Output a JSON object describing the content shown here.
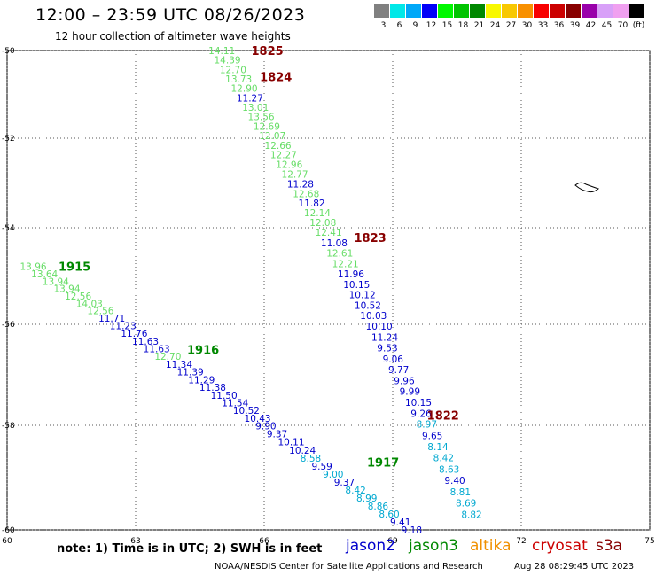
{
  "title": "12:00 – 23:59 UTC 08/26/2023",
  "subtitle": "12 hour collection of altimeter wave heights",
  "scale": {
    "colors": [
      "#808080",
      "#00e8e8",
      "#00a8f8",
      "#0000f8",
      "#00f800",
      "#00c400",
      "#008800",
      "#f8f800",
      "#f8c800",
      "#f89000",
      "#f80000",
      "#cc0000",
      "#880000",
      "#9900aa",
      "#d8a0f8",
      "#f0a0f0",
      "#000000"
    ],
    "labels": [
      "3",
      "6",
      "9",
      "12",
      "15",
      "18",
      "21",
      "24",
      "27",
      "30",
      "33",
      "36",
      "39",
      "42",
      "45",
      "70",
      "(ft)"
    ]
  },
  "axes": {
    "lat_labels": [
      "-50",
      "-52",
      "-54",
      "-56",
      "-58",
      "-60"
    ],
    "lat_values": [
      -50,
      -52,
      -54,
      -56,
      -58,
      -60
    ],
    "lon_labels": [
      "60",
      "63",
      "66",
      "69",
      "72",
      "75"
    ],
    "lon_values": [
      60,
      63,
      66,
      69,
      72,
      75
    ]
  },
  "colors": {
    "jason2": "#0000cc",
    "jason3": "#008800",
    "altika": "#f09000",
    "cryosat": "#cc0000",
    "s3a": "#880000",
    "light_green": "#66dd66",
    "cyan": "#00a8d0"
  },
  "legend": {
    "note": "note:  1) Time is in UTC;  2) SWH is in feet",
    "jason2": "jason2",
    "jason3": "jason3",
    "altika": "altika",
    "cryosat": "cryosat",
    "s3a": "s3a"
  },
  "credit": "NOAA/NESDIS Center for Satellite Applications and Research",
  "timestamp": "Aug 28 08:29:45 UTC 2023",
  "track_labels": [
    {
      "text": "1825",
      "lat": -50.0,
      "lon": 65.7,
      "color": "#880000"
    },
    {
      "text": "1824",
      "lat": -50.6,
      "lon": 65.9,
      "color": "#880000"
    },
    {
      "text": "1823",
      "lat": -54.2,
      "lon": 68.1,
      "color": "#880000"
    },
    {
      "text": "1822",
      "lat": -57.8,
      "lon": 69.8,
      "color": "#880000"
    },
    {
      "text": "1915",
      "lat": -54.8,
      "lon": 61.2,
      "color": "#008800"
    },
    {
      "text": "1916",
      "lat": -56.5,
      "lon": 64.2,
      "color": "#008800"
    },
    {
      "text": "1917",
      "lat": -58.7,
      "lon": 68.4,
      "color": "#008800"
    }
  ],
  "tracks": [
    {
      "name": "s3a-1825",
      "lat_start": -50.0,
      "lat_end": -59.7,
      "lon_start": 64.7,
      "lon_end": 70.6,
      "values": [
        {
          "v": "14.11",
          "c": "#66dd66"
        },
        {
          "v": "14.39",
          "c": "#66dd66"
        },
        {
          "v": "12.70",
          "c": "#66dd66"
        },
        {
          "v": "13.73",
          "c": "#66dd66"
        },
        {
          "v": "12.90",
          "c": "#66dd66"
        },
        {
          "v": "11.27",
          "c": "#0000cc"
        },
        {
          "v": "13.01",
          "c": "#66dd66"
        },
        {
          "v": "13.56",
          "c": "#66dd66"
        },
        {
          "v": "12.69",
          "c": "#66dd66"
        },
        {
          "v": "12.07",
          "c": "#66dd66"
        },
        {
          "v": "12.66",
          "c": "#66dd66"
        },
        {
          "v": "12.27",
          "c": "#66dd66"
        },
        {
          "v": "12.96",
          "c": "#66dd66"
        },
        {
          "v": "12.77",
          "c": "#66dd66"
        },
        {
          "v": "11.28",
          "c": "#0000cc"
        },
        {
          "v": "12.68",
          "c": "#66dd66"
        },
        {
          "v": "11.82",
          "c": "#0000cc"
        },
        {
          "v": "12.14",
          "c": "#66dd66"
        },
        {
          "v": "12.08",
          "c": "#66dd66"
        },
        {
          "v": "12.41",
          "c": "#66dd66"
        },
        {
          "v": "11.08",
          "c": "#0000cc"
        },
        {
          "v": "12.61",
          "c": "#66dd66"
        },
        {
          "v": "12.21",
          "c": "#66dd66"
        },
        {
          "v": "11.96",
          "c": "#0000cc"
        },
        {
          "v": "10.15",
          "c": "#0000cc"
        },
        {
          "v": "10.12",
          "c": "#0000cc"
        },
        {
          "v": "10.52",
          "c": "#0000cc"
        },
        {
          "v": "10.03",
          "c": "#0000cc"
        },
        {
          "v": "10.10",
          "c": "#0000cc"
        },
        {
          "v": "11.24",
          "c": "#0000cc"
        },
        {
          "v": "9.53",
          "c": "#0000cc"
        },
        {
          "v": "9.06",
          "c": "#0000cc"
        },
        {
          "v": "9.77",
          "c": "#0000cc"
        },
        {
          "v": "9.96",
          "c": "#0000cc"
        },
        {
          "v": "9.99",
          "c": "#0000cc"
        },
        {
          "v": "10.15",
          "c": "#0000cc"
        },
        {
          "v": "9.26",
          "c": "#0000cc"
        },
        {
          "v": "8.97",
          "c": "#00a8d0"
        },
        {
          "v": "9.65",
          "c": "#0000cc"
        },
        {
          "v": "8.14",
          "c": "#00a8d0"
        },
        {
          "v": "8.42",
          "c": "#00a8d0"
        },
        {
          "v": "8.63",
          "c": "#00a8d0"
        },
        {
          "v": "9.40",
          "c": "#0000cc"
        },
        {
          "v": "8.81",
          "c": "#00a8d0"
        },
        {
          "v": "8.69",
          "c": "#00a8d0"
        },
        {
          "v": "8.82",
          "c": "#00a8d0"
        }
      ]
    },
    {
      "name": "jason3-1915",
      "lat_start": -54.8,
      "lat_end": -60.0,
      "lon_start": 60.3,
      "lon_end": 69.2,
      "values": [
        {
          "v": "13.96",
          "c": "#66dd66"
        },
        {
          "v": "13.64",
          "c": "#66dd66"
        },
        {
          "v": "13.94",
          "c": "#66dd66"
        },
        {
          "v": "13.94",
          "c": "#66dd66"
        },
        {
          "v": "12.56",
          "c": "#66dd66"
        },
        {
          "v": "14.03",
          "c": "#66dd66"
        },
        {
          "v": "12.56",
          "c": "#66dd66"
        },
        {
          "v": "11.71",
          "c": "#0000cc"
        },
        {
          "v": "11.23",
          "c": "#0000cc"
        },
        {
          "v": "11.76",
          "c": "#0000cc"
        },
        {
          "v": "11.63",
          "c": "#0000cc"
        },
        {
          "v": "11.63",
          "c": "#0000cc"
        },
        {
          "v": "12.70",
          "c": "#66dd66"
        },
        {
          "v": "11.34",
          "c": "#0000cc"
        },
        {
          "v": "11.39",
          "c": "#0000cc"
        },
        {
          "v": "11.29",
          "c": "#0000cc"
        },
        {
          "v": "11.38",
          "c": "#0000cc"
        },
        {
          "v": "11.50",
          "c": "#0000cc"
        },
        {
          "v": "11.54",
          "c": "#0000cc"
        },
        {
          "v": "10.52",
          "c": "#0000cc"
        },
        {
          "v": "10.43",
          "c": "#0000cc"
        },
        {
          "v": "9.90",
          "c": "#0000cc"
        },
        {
          "v": "9.37",
          "c": "#0000cc"
        },
        {
          "v": "10.11",
          "c": "#0000cc"
        },
        {
          "v": "10.24",
          "c": "#0000cc"
        },
        {
          "v": "8.58",
          "c": "#00a8d0"
        },
        {
          "v": "9.59",
          "c": "#0000cc"
        },
        {
          "v": "9.00",
          "c": "#00a8d0"
        },
        {
          "v": "9.37",
          "c": "#0000cc"
        },
        {
          "v": "8.42",
          "c": "#00a8d0"
        },
        {
          "v": "8.99",
          "c": "#00a8d0"
        },
        {
          "v": "8.86",
          "c": "#00a8d0"
        },
        {
          "v": "8.60",
          "c": "#00a8d0"
        },
        {
          "v": "9.41",
          "c": "#0000cc"
        },
        {
          "v": "9.18",
          "c": "#0000cc"
        }
      ]
    }
  ]
}
